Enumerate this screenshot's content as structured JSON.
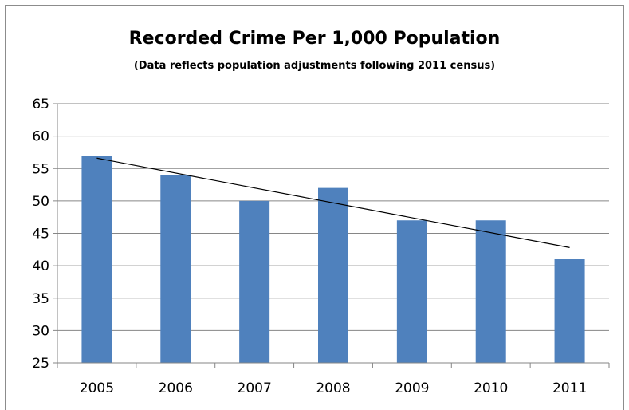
{
  "chart_data": {
    "type": "bar",
    "title": "Recorded Crime Per 1,000 Population",
    "subtitle": "(Data reflects population adjustments  following 2011 census)",
    "categories": [
      "2005",
      "2006",
      "2007",
      "2008",
      "2009",
      "2010",
      "2011"
    ],
    "values": [
      57,
      54,
      50,
      52,
      47,
      47,
      41
    ],
    "ylim": [
      25,
      65
    ],
    "yticks": [
      25,
      30,
      35,
      40,
      45,
      50,
      55,
      60,
      65
    ],
    "grid": true,
    "legend": "none",
    "trendline": {
      "type": "linear",
      "start": 56.6,
      "end": 42.8
    },
    "colors": {
      "bar": "#4f81bd",
      "trendline": "#000000",
      "grid": "#868686"
    }
  }
}
